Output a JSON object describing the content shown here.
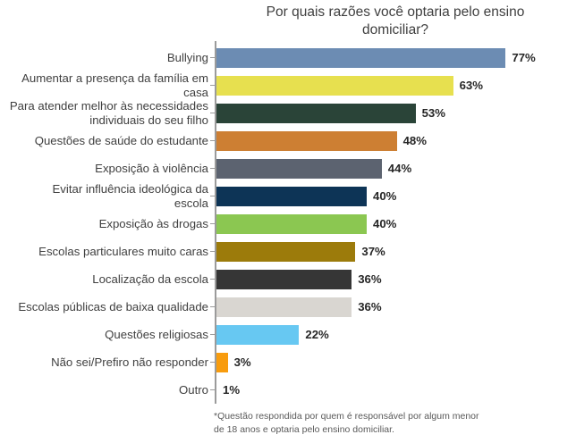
{
  "chart_data": {
    "type": "bar",
    "orientation": "horizontal",
    "title": "Por quais razões você optaria pelo ensino\ndomiciliar?",
    "unit": "%",
    "xlim": [
      0,
      96
    ],
    "grid": false,
    "legend": false,
    "categories": [
      "Bullying",
      "Aumentar a presença da família em\ncasa",
      "Para atender melhor às necessidades\nindividuais do seu filho",
      "Questões de saúde do estudante",
      "Exposição à violência",
      "Evitar influência ideológica da\nescola",
      "Exposição às drogas",
      "Escolas particulares muito caras",
      "Localização da escola",
      "Escolas públicas de baixa qualidade",
      "Questões religiosas",
      "Não sei/Prefiro não responder",
      "Outro"
    ],
    "values": [
      77,
      63,
      53,
      48,
      44,
      40,
      40,
      37,
      36,
      36,
      22,
      3,
      1
    ],
    "value_labels": [
      "77%",
      "63%",
      "53%",
      "48%",
      "44%",
      "40%",
      "40%",
      "37%",
      "36%",
      "36%",
      "22%",
      "3%",
      "1%"
    ],
    "bar_colors": [
      "#6c8cb3",
      "#e7e04f",
      "#2a4438",
      "#cd7f33",
      "#5c6370",
      "#0d3456",
      "#8bc751",
      "#9c7b0b",
      "#363636",
      "#d9d6d1",
      "#67c8f2",
      "#f89c0e",
      null
    ],
    "axis_color": "#9b9b9b",
    "title_color": "#3f3f3f",
    "category_text_color": "#3f3f3f",
    "value_text_color": "#262626",
    "footnote_color": "#595959",
    "footnote": "*Questão respondida por quem é responsável por algum menor\nde 18 anos e optaria pelo ensino domiciliar."
  }
}
